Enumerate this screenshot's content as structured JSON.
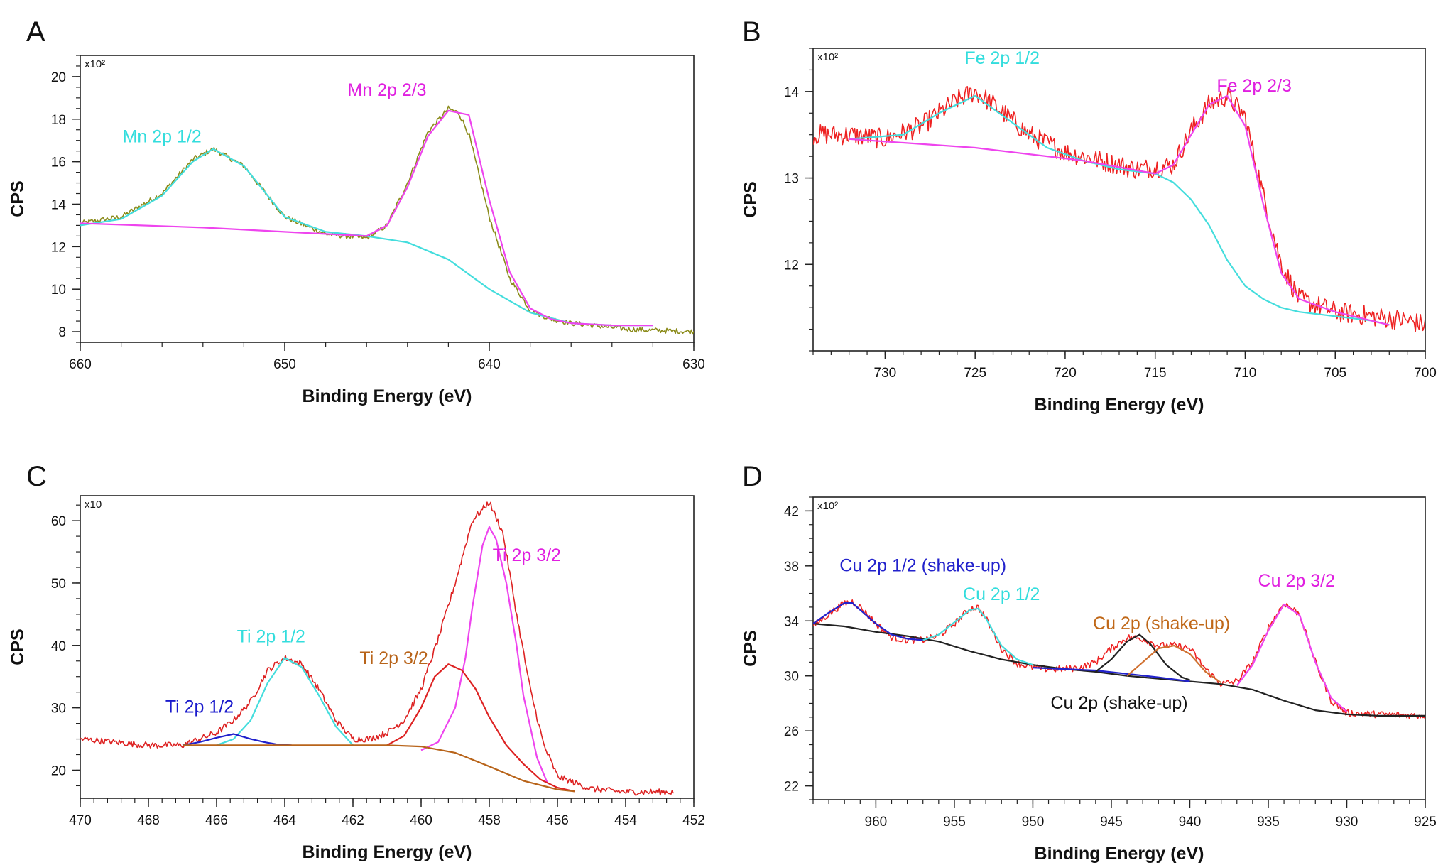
{
  "chart_data": [
    {
      "panel": "A",
      "type": "line",
      "title": "",
      "xlabel": "Binding Energy (eV)",
      "ylabel": "CPS",
      "scale_label": "x10²",
      "xlim": [
        660,
        630
      ],
      "ylim": [
        7.5,
        21
      ],
      "xticks": [
        660,
        650,
        640,
        630
      ],
      "yticks": [
        8,
        10,
        12,
        14,
        16,
        18,
        20
      ],
      "grid": false,
      "annotations": [
        {
          "text": "Mn 2p 1/2",
          "x": 656,
          "y": 16.9,
          "color": "#33dddd"
        },
        {
          "text": "Mn 2p 2/3",
          "x": 645,
          "y": 19.1,
          "color": "#e020e0"
        }
      ],
      "series": [
        {
          "color": "#8b8b1a",
          "noise": 0.12,
          "x": [
            660,
            658,
            656,
            654.5,
            653.5,
            652,
            650,
            648,
            646,
            645,
            644,
            643,
            642,
            641.5,
            641,
            640,
            639,
            638,
            637,
            636,
            635,
            633,
            630
          ],
          "y": [
            13.1,
            13.4,
            14.5,
            16.1,
            16.6,
            15.8,
            13.4,
            12.6,
            12.4,
            13.0,
            15.0,
            17.4,
            18.5,
            18.3,
            17.3,
            13.4,
            10.5,
            9.0,
            8.6,
            8.4,
            8.3,
            8.1,
            8.0
          ]
        },
        {
          "color": "#44dddd",
          "x": [
            660,
            658,
            656,
            654.5,
            653.5,
            652,
            650,
            648,
            646,
            644,
            642,
            640,
            638,
            636,
            634,
            632
          ],
          "y": [
            13.0,
            13.3,
            14.4,
            16.0,
            16.6,
            15.8,
            13.4,
            12.7,
            12.5,
            12.2,
            11.4,
            10.0,
            8.9,
            8.4,
            8.3,
            8.3
          ]
        },
        {
          "color": "#ee44ee",
          "x": [
            660,
            654,
            648,
            646,
            645,
            644,
            643,
            642,
            641,
            640,
            639,
            638,
            637,
            636,
            634,
            632
          ],
          "y": [
            13.1,
            12.9,
            12.6,
            12.5,
            13.0,
            14.8,
            17.2,
            18.4,
            18.2,
            14.2,
            10.8,
            9.1,
            8.6,
            8.4,
            8.3,
            8.3
          ]
        }
      ]
    },
    {
      "panel": "B",
      "type": "line",
      "title": "",
      "xlabel": "Binding Energy (eV)",
      "ylabel": "CPS",
      "scale_label": "x10²",
      "xlim": [
        734,
        700
      ],
      "ylim": [
        11,
        14.5
      ],
      "xticks": [
        730,
        725,
        720,
        715,
        710,
        705,
        700
      ],
      "yticks": [
        12,
        13,
        14
      ],
      "grid": false,
      "annotations": [
        {
          "text": "Fe 2p 1/2",
          "x": 723.5,
          "y": 14.32,
          "color": "#33dddd"
        },
        {
          "text": "Fe 2p 2/3",
          "x": 709.5,
          "y": 14.0,
          "color": "#e020e0"
        }
      ],
      "series": [
        {
          "color": "#ee2222",
          "noise": 0.12,
          "x": [
            734,
            732,
            730,
            728,
            726,
            725,
            724,
            722,
            720,
            718,
            716,
            714,
            713,
            712,
            711,
            710,
            709,
            708,
            707,
            705,
            703,
            701,
            700
          ],
          "y": [
            13.5,
            13.5,
            13.45,
            13.6,
            13.9,
            14.0,
            13.85,
            13.5,
            13.3,
            13.2,
            13.1,
            13.15,
            13.55,
            13.85,
            13.95,
            13.7,
            12.8,
            12.0,
            11.6,
            11.45,
            11.4,
            11.35,
            11.3
          ]
        },
        {
          "color": "#44dddd",
          "x": [
            732,
            729,
            727,
            725,
            723,
            721,
            719,
            717,
            715,
            714,
            713,
            712,
            711,
            710,
            709,
            708,
            707,
            705,
            703,
            702
          ],
          "y": [
            13.45,
            13.5,
            13.75,
            13.95,
            13.65,
            13.35,
            13.2,
            13.1,
            13.05,
            12.95,
            12.75,
            12.45,
            12.05,
            11.75,
            11.6,
            11.5,
            11.45,
            11.4,
            11.35,
            11.3
          ]
        },
        {
          "color": "#ee44ee",
          "x": [
            732,
            725,
            719,
            715,
            714,
            713,
            712,
            711,
            710,
            709,
            708,
            707,
            705,
            703,
            702
          ],
          "y": [
            13.45,
            13.35,
            13.2,
            13.05,
            13.15,
            13.5,
            13.85,
            13.95,
            13.6,
            12.7,
            11.9,
            11.6,
            11.45,
            11.35,
            11.3
          ]
        }
      ]
    },
    {
      "panel": "C",
      "type": "line",
      "title": "",
      "xlabel": "Binding Energy (eV)",
      "ylabel": "CPS",
      "scale_label": "x10",
      "xlim": [
        470,
        452
      ],
      "ylim": [
        15.5,
        64
      ],
      "xticks": [
        470,
        468,
        466,
        464,
        462,
        460,
        458,
        456,
        454,
        452
      ],
      "yticks": [
        20,
        30,
        40,
        50,
        60
      ],
      "grid": false,
      "annotations": [
        {
          "text": "Ti 2p 1/2",
          "x": 466.5,
          "y": 29.2,
          "color": "#1a1acc"
        },
        {
          "text": "Ti 2p 1/2",
          "x": 464.4,
          "y": 40.5,
          "color": "#33dddd"
        },
        {
          "text": "Ti 2p 3/2",
          "x": 460.8,
          "y": 37.0,
          "color": "#b8641a"
        },
        {
          "text": "Ti 2p 3/2",
          "x": 456.9,
          "y": 53.5,
          "color": "#e020e0"
        }
      ],
      "series": [
        {
          "color": "#dd2222",
          "noise": 0.5,
          "x": [
            470,
            468,
            467,
            466,
            465.5,
            465,
            464.5,
            464,
            463.5,
            463,
            462.5,
            462,
            461.5,
            461,
            460.5,
            460,
            459.5,
            459,
            458.5,
            458,
            457.6,
            457.2,
            456.8,
            456.4,
            456,
            455,
            454,
            452.6
          ],
          "y": [
            25,
            24,
            24,
            26,
            28,
            31,
            36,
            38,
            37,
            33,
            28,
            25,
            25,
            26,
            28,
            33,
            41,
            50,
            60,
            63,
            58,
            45,
            33,
            24,
            19,
            17,
            16.5,
            16.5
          ]
        },
        {
          "color": "#ee44ee",
          "x": [
            460,
            459.5,
            459,
            458.7,
            458.5,
            458.2,
            458,
            457.8,
            457.5,
            457.2,
            457,
            456.6,
            456.3
          ],
          "y": [
            23.2,
            24.5,
            30,
            38,
            46,
            56,
            59,
            57,
            50,
            40,
            32,
            22,
            18
          ]
        },
        {
          "color": "#dd2222",
          "x": [
            461,
            460.5,
            460,
            459.6,
            459.2,
            458.8,
            458.4,
            458,
            457.5,
            457,
            456.5,
            456,
            455.5
          ],
          "y": [
            24,
            25.5,
            30,
            35,
            37,
            36,
            33,
            28.5,
            24,
            21,
            18.5,
            17.2,
            16.6
          ]
        },
        {
          "color": "#44dddd",
          "x": [
            466,
            465.5,
            465,
            464.5,
            464,
            463.5,
            463,
            462.5,
            462
          ],
          "y": [
            24,
            25,
            28,
            34,
            38,
            36.5,
            32,
            27,
            24
          ]
        },
        {
          "color": "#2020cc",
          "x": [
            467,
            466.5,
            466,
            465.5,
            465,
            464.6,
            464.2,
            463.8
          ],
          "y": [
            24,
            24.5,
            25.2,
            25.8,
            25,
            24.5,
            24.1,
            24
          ]
        },
        {
          "color": "#b8641a",
          "x": [
            467,
            465,
            463,
            461,
            460,
            459,
            458,
            457,
            456,
            455.5
          ],
          "y": [
            24,
            24,
            24,
            24,
            23.8,
            22.8,
            20.6,
            18.3,
            16.9,
            16.6
          ]
        }
      ]
    },
    {
      "panel": "D",
      "type": "line",
      "title": "",
      "xlabel": "Binding Energy (eV)",
      "ylabel": "CPS",
      "scale_label": "x10²",
      "xlim": [
        964,
        925
      ],
      "ylim": [
        21,
        43
      ],
      "xticks": [
        960,
        955,
        950,
        945,
        940,
        935,
        930,
        925
      ],
      "yticks": [
        22,
        26,
        30,
        34,
        38,
        42
      ],
      "grid": false,
      "annotations": [
        {
          "text": "Cu 2p 1/2 (shake-up)",
          "x": 957,
          "y": 37.6,
          "color": "#2222cc"
        },
        {
          "text": "Cu 2p 1/2",
          "x": 952,
          "y": 35.5,
          "color": "#33dddd"
        },
        {
          "text": "Cu 2p (shake-up)",
          "x": 941.8,
          "y": 33.4,
          "color": "#c06818"
        },
        {
          "text": "Cu 2p (shake-up)",
          "x": 944.5,
          "y": 27.6,
          "color": "#111111"
        },
        {
          "text": "Cu 2p 3/2",
          "x": 933.2,
          "y": 36.5,
          "color": "#e020e0"
        }
      ],
      "series": [
        {
          "color": "#ee2222",
          "noise": 0.25,
          "x": [
            964,
            963,
            962,
            961.5,
            961,
            960,
            959,
            958,
            957,
            956,
            955,
            954,
            953.5,
            953,
            952,
            951,
            950,
            949,
            948,
            947,
            946,
            945,
            944,
            943,
            942,
            941,
            940,
            939,
            938,
            937,
            936,
            935,
            934,
            933,
            932,
            931,
            930,
            928,
            925
          ],
          "y": [
            33.6,
            34.5,
            35.3,
            35.4,
            35.0,
            33.8,
            32.8,
            32.6,
            32.6,
            32.9,
            33.8,
            34.9,
            35.0,
            34.2,
            32.0,
            30.9,
            30.6,
            30.5,
            30.5,
            30.6,
            31.0,
            32.0,
            32.8,
            32.7,
            32.2,
            32.2,
            32.0,
            30.5,
            29.4,
            29.6,
            31.0,
            33.5,
            35.3,
            34.5,
            31.0,
            28.2,
            27.3,
            27.2,
            27.1
          ]
        },
        {
          "color": "#222222",
          "x": [
            964,
            962,
            960,
            958,
            956,
            954,
            952,
            950,
            948,
            946,
            944,
            942,
            940,
            938,
            936,
            934,
            932,
            930,
            928,
            925
          ],
          "y": [
            33.8,
            33.6,
            33.2,
            32.9,
            32.5,
            31.8,
            31.2,
            30.8,
            30.5,
            30.3,
            30.0,
            29.8,
            29.6,
            29.4,
            29.0,
            28.2,
            27.5,
            27.2,
            27.1,
            27.1
          ]
        },
        {
          "color": "#2222cc",
          "x": [
            964,
            963,
            962,
            961.5,
            961,
            960,
            959,
            958,
            957
          ],
          "y": [
            33.8,
            34.6,
            35.3,
            35.3,
            34.8,
            33.8,
            33.0,
            32.7,
            32.6
          ]
        },
        {
          "color": "#44dddd",
          "x": [
            957,
            956,
            955,
            954,
            953.5,
            953,
            952,
            951,
            950
          ],
          "y": [
            32.6,
            33.0,
            33.9,
            34.8,
            34.9,
            34.2,
            32.2,
            31.2,
            30.8
          ]
        },
        {
          "color": "#2222cc",
          "x": [
            950,
            946,
            942,
            940
          ],
          "y": [
            30.6,
            30.4,
            29.9,
            29.6
          ]
        },
        {
          "color": "#222222",
          "x": [
            946,
            945,
            944,
            943.2,
            942.5,
            941.5,
            940.5,
            940
          ],
          "y": [
            30.3,
            31.2,
            32.5,
            33.0,
            32.3,
            30.8,
            29.9,
            29.7
          ]
        },
        {
          "color": "#d07030",
          "x": [
            944,
            943,
            942,
            941,
            940,
            939,
            938
          ],
          "y": [
            30.0,
            31.0,
            32.0,
            32.2,
            31.6,
            30.3,
            29.5
          ]
        },
        {
          "color": "#ee44ee",
          "x": [
            937,
            936,
            935,
            934,
            933,
            932,
            931,
            930
          ],
          "y": [
            29.3,
            30.8,
            33.3,
            35.2,
            34.4,
            31.0,
            28.4,
            27.4
          ]
        }
      ]
    }
  ]
}
